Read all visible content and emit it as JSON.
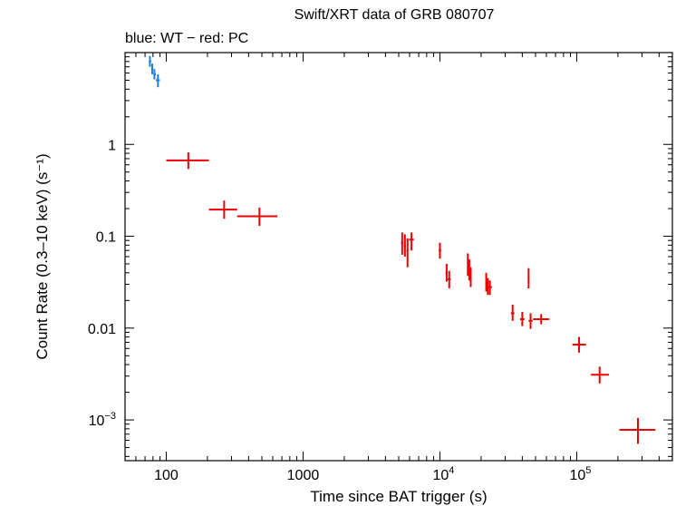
{
  "chart_data": {
    "type": "scatter",
    "title": "Swift/XRT data of GRB 080707",
    "subtitle": "blue: WT − red: PC",
    "xlabel": "Time since BAT trigger (s)",
    "ylabel": "Count Rate (0.3–10 keV) (s⁻¹)",
    "xscale": "log",
    "yscale": "log",
    "xlim": [
      50,
      500000
    ],
    "ylim": [
      0.00036,
      10
    ],
    "x_tick_labels": [
      {
        "value": 100,
        "base": "100",
        "exp": ""
      },
      {
        "value": 1000,
        "base": "1000",
        "exp": ""
      },
      {
        "value": 10000,
        "base": "10",
        "exp": "4"
      },
      {
        "value": 100000,
        "base": "10",
        "exp": "5"
      }
    ],
    "y_tick_labels": [
      {
        "value": 1,
        "base": "1",
        "exp": ""
      },
      {
        "value": 0.1,
        "base": "0.1",
        "exp": ""
      },
      {
        "value": 0.01,
        "base": "0.01",
        "exp": ""
      },
      {
        "value": 0.001,
        "base": "10",
        "exp": "−3"
      }
    ],
    "grid": false,
    "series": [
      {
        "name": "WT",
        "color": "#1e7fe0",
        "points": [
          {
            "x": 76,
            "xlo": 74.5,
            "xhi": 77.5,
            "y": 8.0,
            "ylo": 7.0,
            "yhi": 9.2
          },
          {
            "x": 79,
            "xlo": 77.5,
            "xhi": 80.5,
            "y": 6.6,
            "ylo": 5.8,
            "yhi": 7.6
          },
          {
            "x": 82,
            "xlo": 80.5,
            "xhi": 84,
            "y": 5.8,
            "ylo": 5.1,
            "yhi": 6.6
          },
          {
            "x": 87,
            "xlo": 84,
            "xhi": 90,
            "y": 5.0,
            "ylo": 4.2,
            "yhi": 5.8
          }
        ]
      },
      {
        "name": "PC",
        "color": "#ee0000",
        "points": [
          {
            "x": 145,
            "xlo": 100,
            "xhi": 205,
            "y": 0.67,
            "ylo": 0.54,
            "yhi": 0.82
          },
          {
            "x": 265,
            "xlo": 205,
            "xhi": 330,
            "y": 0.195,
            "ylo": 0.155,
            "yhi": 0.245
          },
          {
            "x": 480,
            "xlo": 330,
            "xhi": 650,
            "y": 0.165,
            "ylo": 0.13,
            "yhi": 0.205
          },
          {
            "x": 5300,
            "xlo": 5200,
            "xhi": 5400,
            "y": 0.085,
            "ylo": 0.063,
            "yhi": 0.11
          },
          {
            "x": 5550,
            "xlo": 5450,
            "xhi": 5650,
            "y": 0.078,
            "ylo": 0.06,
            "yhi": 0.105
          },
          {
            "x": 5800,
            "xlo": 5700,
            "xhi": 5900,
            "y": 0.07,
            "ylo": 0.046,
            "yhi": 0.095
          },
          {
            "x": 6200,
            "xlo": 5950,
            "xhi": 6450,
            "y": 0.092,
            "ylo": 0.07,
            "yhi": 0.11
          },
          {
            "x": 10000,
            "xlo": 9800,
            "xhi": 10200,
            "y": 0.07,
            "ylo": 0.057,
            "yhi": 0.085
          },
          {
            "x": 11200,
            "xlo": 11000,
            "xhi": 11400,
            "y": 0.04,
            "ylo": 0.032,
            "yhi": 0.05
          },
          {
            "x": 11700,
            "xlo": 11400,
            "xhi": 12000,
            "y": 0.034,
            "ylo": 0.027,
            "yhi": 0.042
          },
          {
            "x": 16000,
            "xlo": 15800,
            "xhi": 16200,
            "y": 0.05,
            "ylo": 0.037,
            "yhi": 0.065
          },
          {
            "x": 16400,
            "xlo": 16200,
            "xhi": 16600,
            "y": 0.043,
            "ylo": 0.033,
            "yhi": 0.056
          },
          {
            "x": 16800,
            "xlo": 16600,
            "xhi": 17000,
            "y": 0.036,
            "ylo": 0.028,
            "yhi": 0.046
          },
          {
            "x": 21800,
            "xlo": 21600,
            "xhi": 22000,
            "y": 0.032,
            "ylo": 0.025,
            "yhi": 0.04
          },
          {
            "x": 22400,
            "xlo": 22200,
            "xhi": 22600,
            "y": 0.028,
            "ylo": 0.023,
            "yhi": 0.035
          },
          {
            "x": 23200,
            "xlo": 22600,
            "xhi": 24000,
            "y": 0.028,
            "ylo": 0.023,
            "yhi": 0.033
          },
          {
            "x": 34000,
            "xlo": 33000,
            "xhi": 35000,
            "y": 0.0145,
            "ylo": 0.012,
            "yhi": 0.018
          },
          {
            "x": 40000,
            "xlo": 38500,
            "xhi": 41500,
            "y": 0.0125,
            "ylo": 0.0105,
            "yhi": 0.015
          },
          {
            "x": 44500,
            "xlo": 43800,
            "xhi": 45200,
            "y": 0.035,
            "ylo": 0.027,
            "yhi": 0.045
          },
          {
            "x": 46000,
            "xlo": 44500,
            "xhi": 47500,
            "y": 0.012,
            "ylo": 0.0098,
            "yhi": 0.0145
          },
          {
            "x": 55000,
            "xlo": 48000,
            "xhi": 63000,
            "y": 0.0125,
            "ylo": 0.011,
            "yhi": 0.0142
          },
          {
            "x": 104000,
            "xlo": 93000,
            "xhi": 117000,
            "y": 0.0066,
            "ylo": 0.0054,
            "yhi": 0.008
          },
          {
            "x": 147000,
            "xlo": 127000,
            "xhi": 172000,
            "y": 0.0031,
            "ylo": 0.0025,
            "yhi": 0.0038
          },
          {
            "x": 280000,
            "xlo": 205000,
            "xhi": 375000,
            "y": 0.00078,
            "ylo": 0.00055,
            "yhi": 0.00105
          }
        ]
      }
    ]
  }
}
